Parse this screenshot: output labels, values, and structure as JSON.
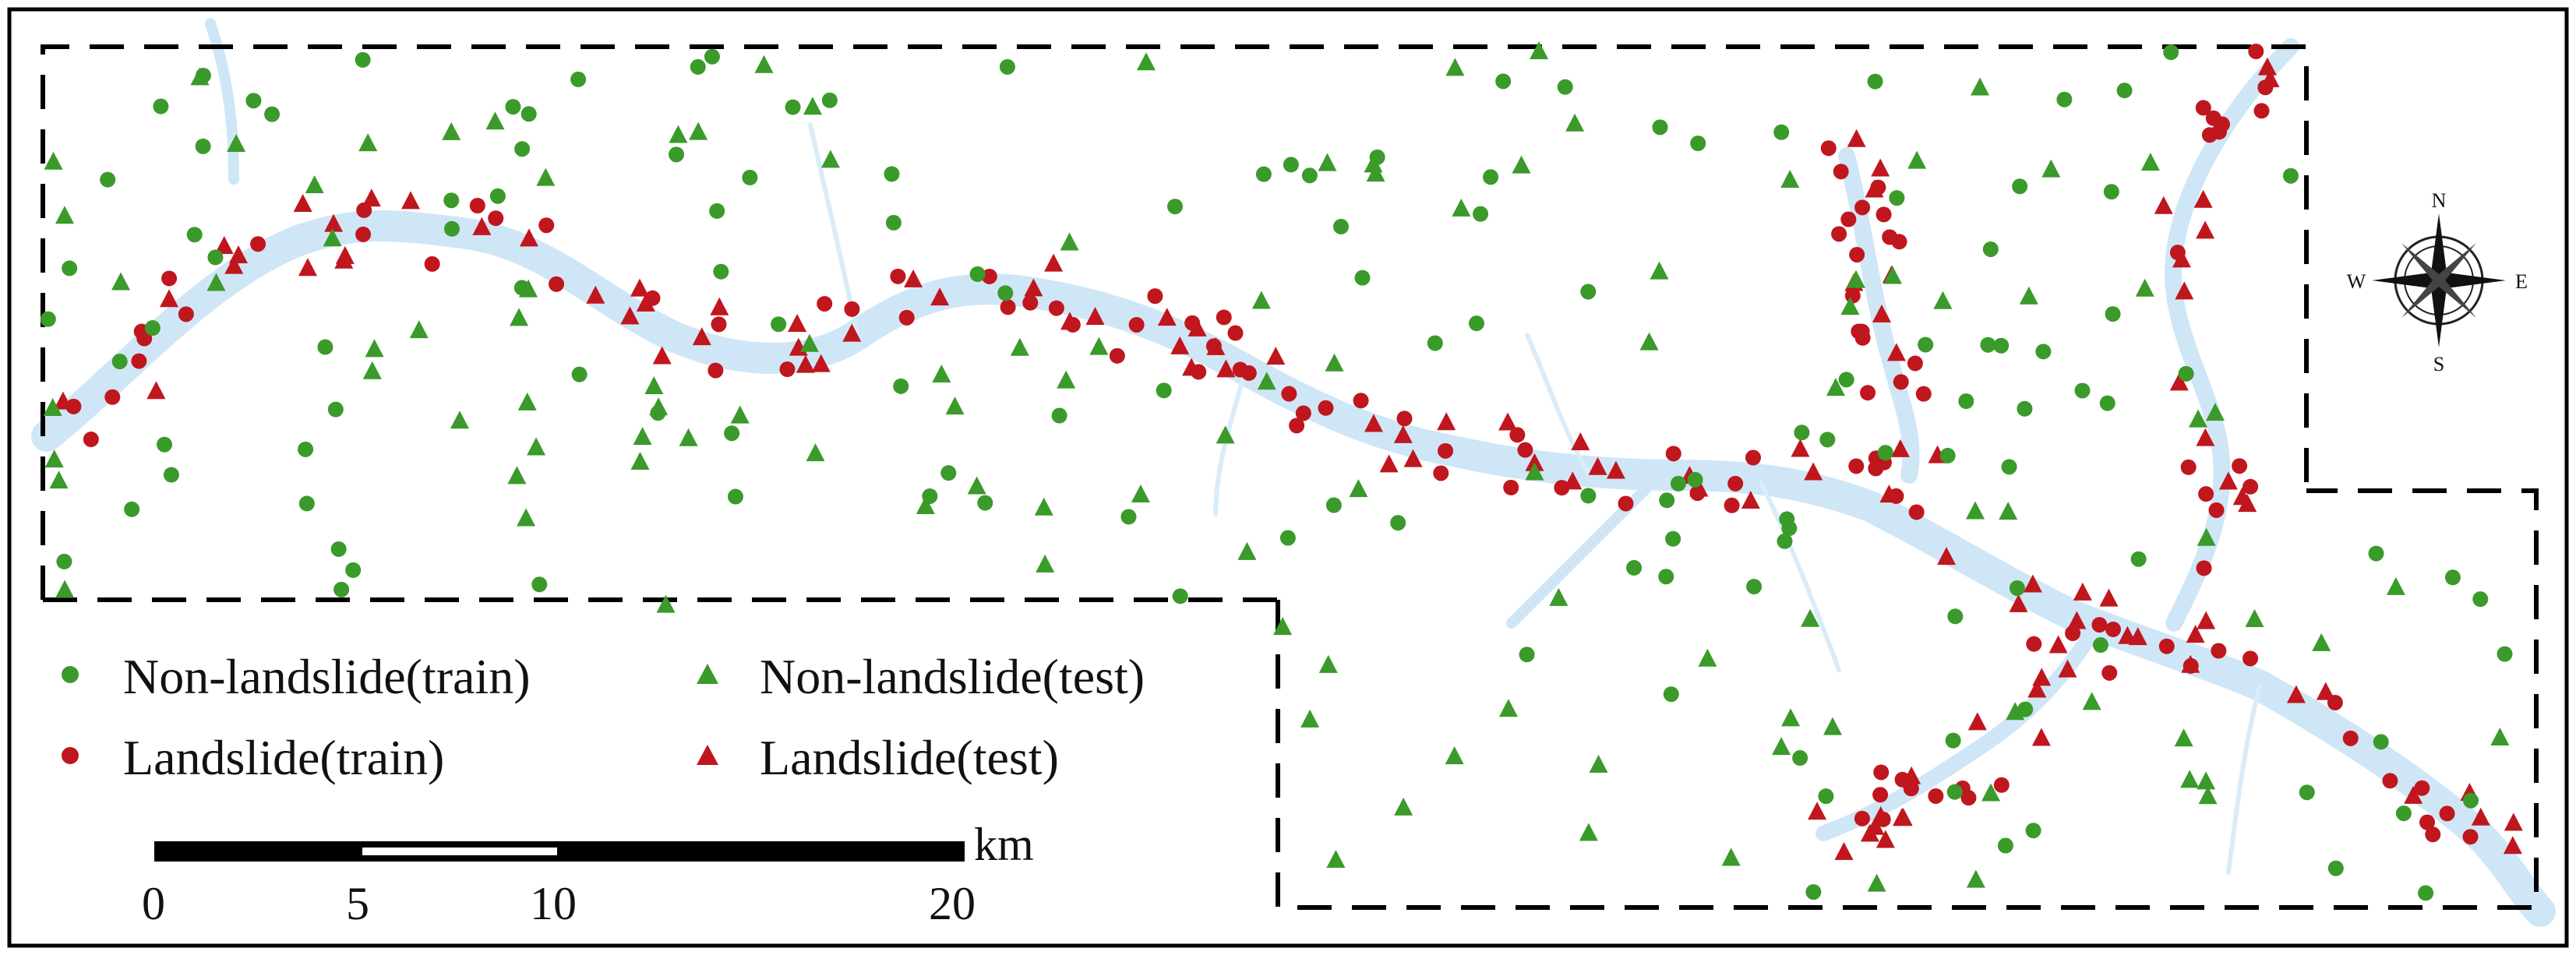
{
  "legend": {
    "items": [
      {
        "label": "Non-landslide(train)",
        "marker": "circle",
        "color": "#3a9a2a"
      },
      {
        "label": "Landslide(train)",
        "marker": "circle",
        "color": "#c0161e"
      },
      {
        "label": "Non-landslide(test)",
        "marker": "triangle",
        "color": "#3a9a2a"
      },
      {
        "label": "Landslide(test)",
        "marker": "triangle",
        "color": "#c0161e"
      }
    ]
  },
  "scale_bar": {
    "unit": "km",
    "ticks": [
      "0",
      "5",
      "10",
      "20"
    ]
  },
  "compass": {
    "n": "N",
    "s": "S",
    "e": "E",
    "w": "W"
  },
  "colors": {
    "river": "#cfe6f7",
    "non_landslide": "#3a9a2a",
    "landslide": "#c0161e",
    "frame": "#000000"
  }
}
